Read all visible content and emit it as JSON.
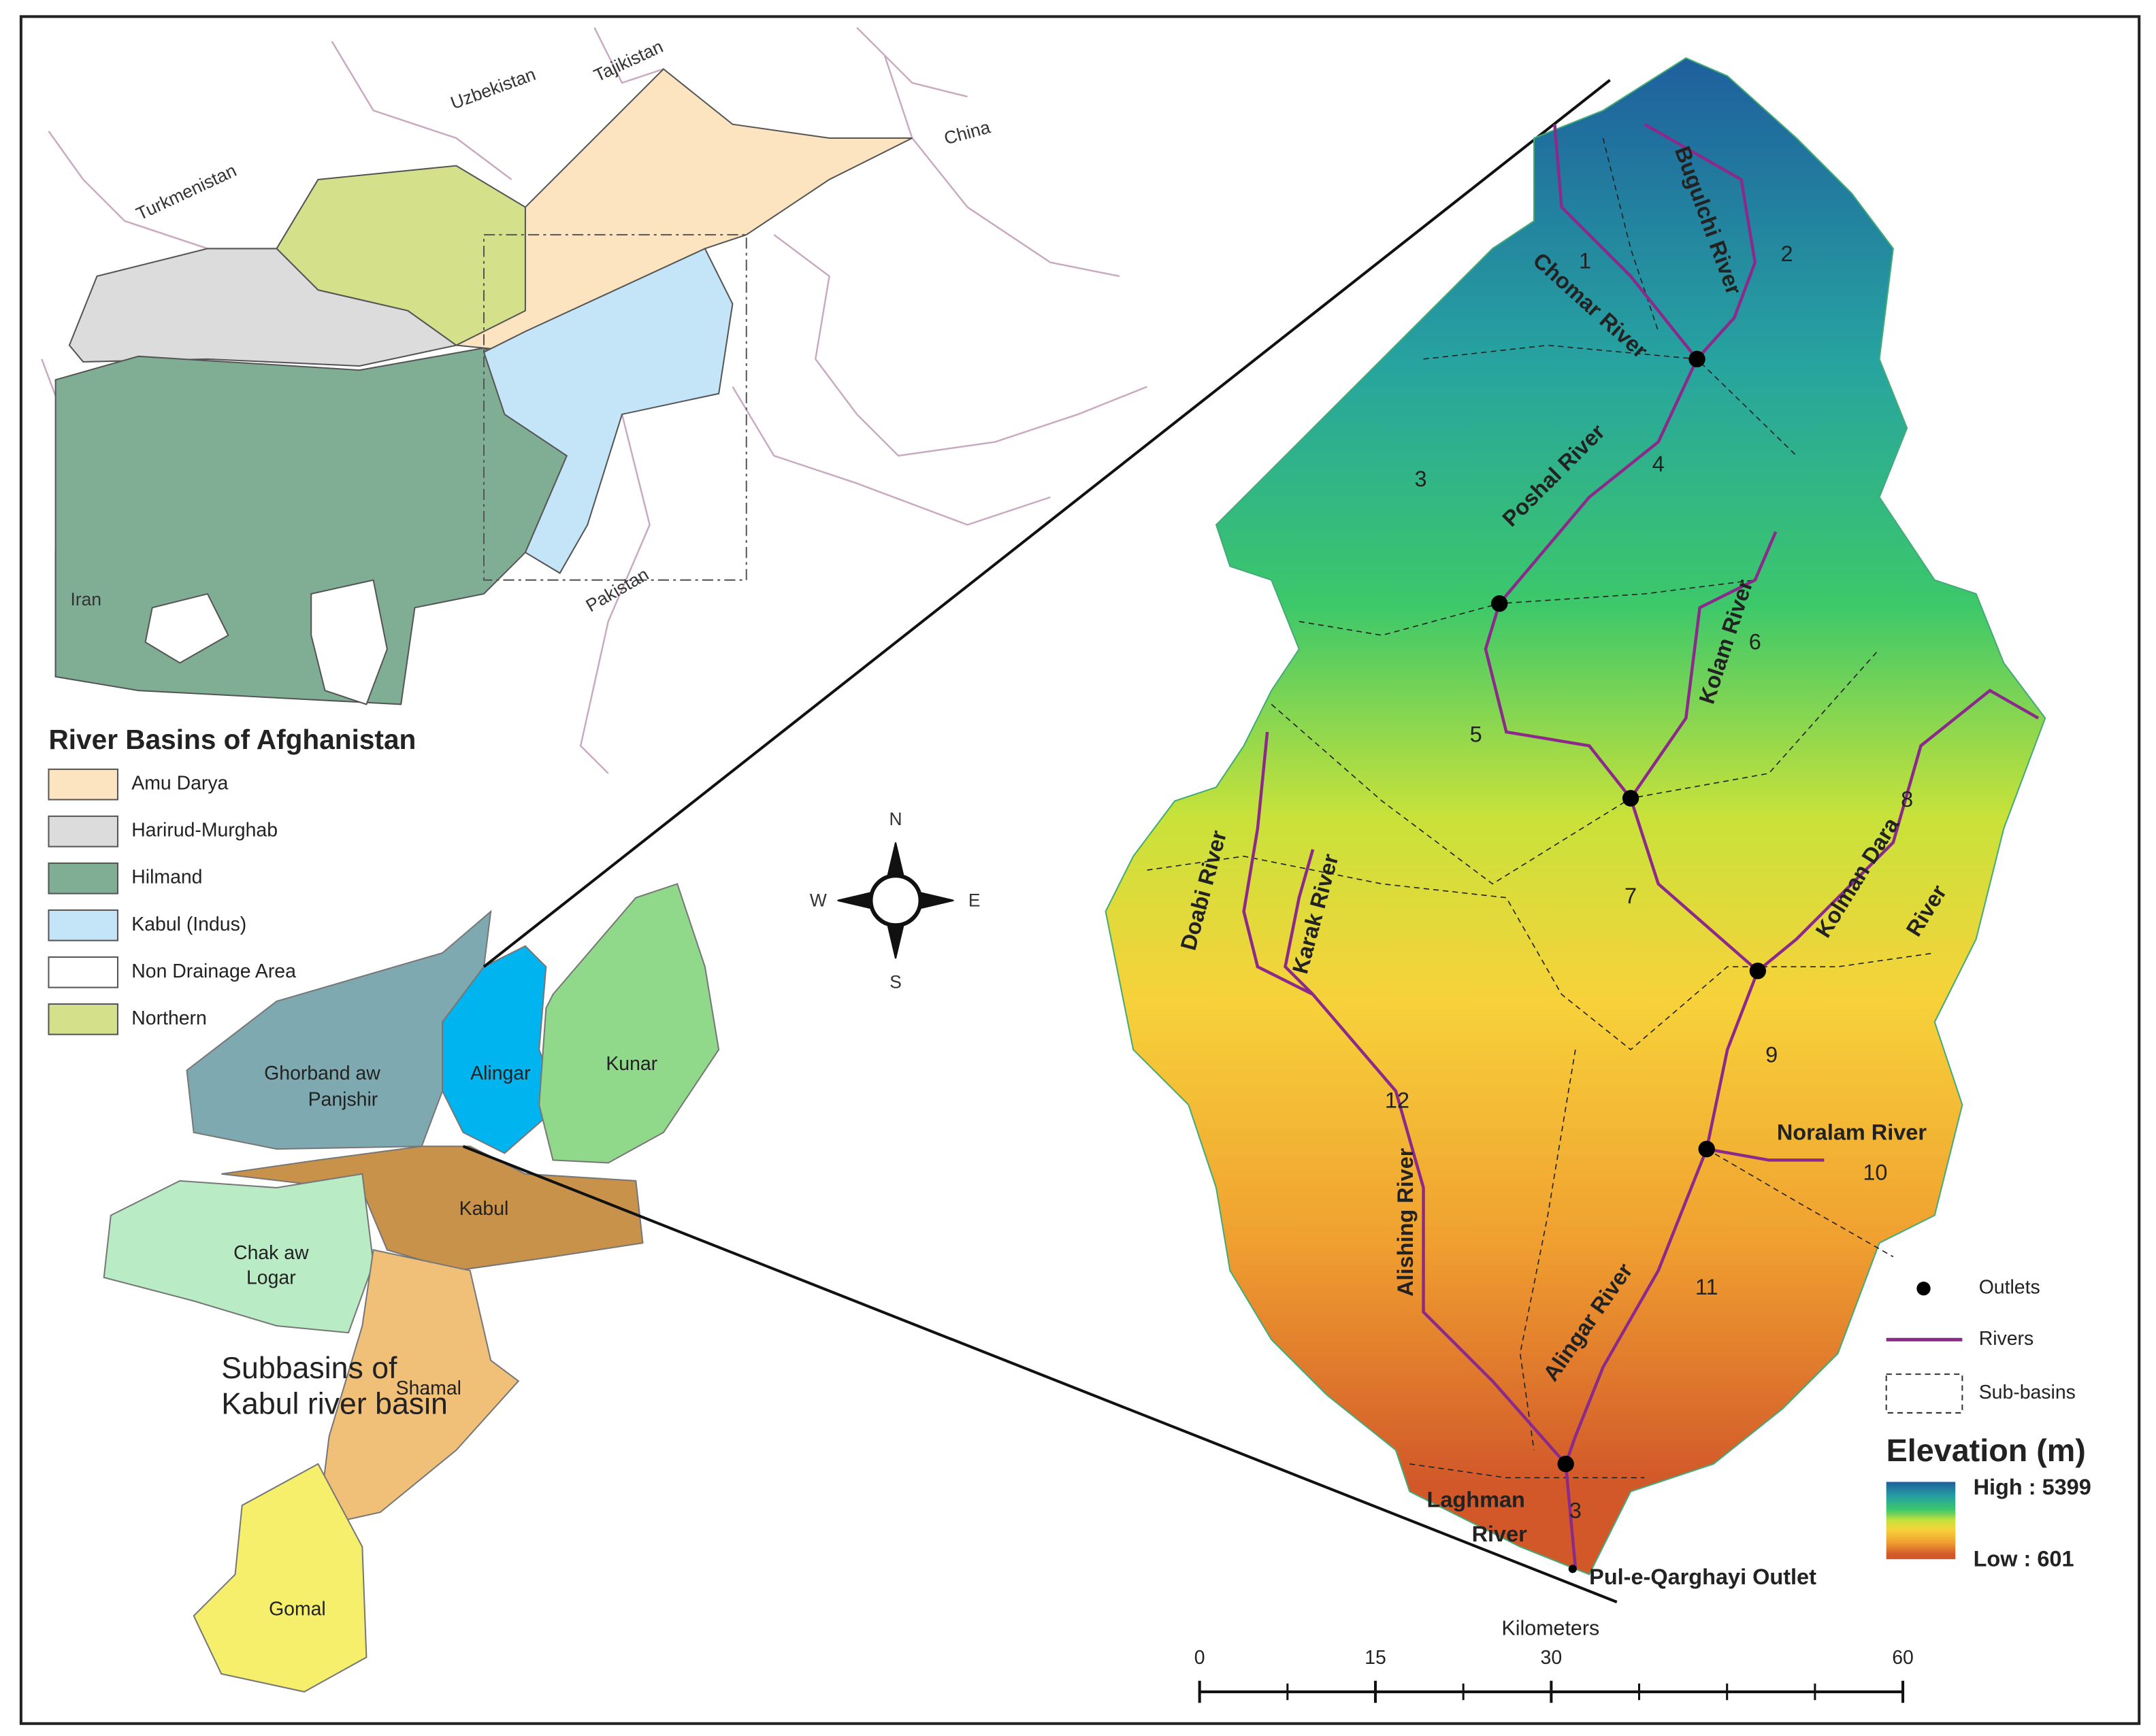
{
  "overview_map": {
    "countries": [
      "Turkmenistan",
      "Uzbekistan",
      "Tajikistan",
      "China",
      "Iran",
      "Pakistan"
    ],
    "legend": {
      "title": "River Basins of Afghanistan",
      "items": [
        {
          "label": "Amu Darya",
          "color": "#fde4c0"
        },
        {
          "label": "Harirud-Murghab",
          "color": "#dcdcdc"
        },
        {
          "label": "Hilmand",
          "color": "#7fae95"
        },
        {
          "label": "Kabul (Indus)",
          "color": "#c4e4f8"
        },
        {
          "label": "Non Drainage Area",
          "color": "#ffffff"
        },
        {
          "label": "Northern",
          "color": "#d4e08a"
        }
      ]
    }
  },
  "subbasin_map": {
    "title": [
      "Subbasins of",
      "Kabul river basin"
    ],
    "subbasins": [
      {
        "label": [
          "Ghorband aw",
          "Panjshir"
        ],
        "color": "#7fa9b0"
      },
      {
        "label": [
          "Alingar"
        ],
        "color": "#00b4ef"
      },
      {
        "label": [
          "Kunar"
        ],
        "color": "#90d88a"
      },
      {
        "label": [
          "Kabul"
        ],
        "color": "#c8924a"
      },
      {
        "label": [
          "Chak aw",
          "Logar"
        ],
        "color": "#b9ecc4"
      },
      {
        "label": [
          "Shamal"
        ],
        "color": "#f0c078"
      },
      {
        "label": [
          "Gomal"
        ],
        "color": "#f5ef6c"
      }
    ]
  },
  "compass": {
    "north": "N",
    "south": "S",
    "east": "E",
    "west": "W"
  },
  "study_area": {
    "rivers": [
      "Bugulchi River",
      "Chomar River",
      "Poshal River",
      "Kolam River",
      "Kolman Dara",
      "River",
      "Noralam River",
      "Alingar River",
      "Alishing River",
      "Doabi River",
      "Karak River",
      "Laghman",
      "River"
    ],
    "subbasin_numbers": [
      1,
      2,
      3,
      4,
      5,
      6,
      7,
      8,
      9,
      10,
      11,
      12,
      3
    ],
    "outlet_label": "Pul-e-Qarghayi Outlet",
    "river_color": "#8b2a8b"
  },
  "legend": {
    "items": [
      "Outlets",
      "Rivers",
      "Sub-basins"
    ],
    "elevation": {
      "title": "Elevation (m)",
      "high": "High : 5399",
      "low": "Low : 601"
    }
  },
  "scale_bar": {
    "title": "Kilometers",
    "range": [
      0,
      60
    ],
    "ticks": [
      0,
      15,
      30,
      60
    ]
  }
}
